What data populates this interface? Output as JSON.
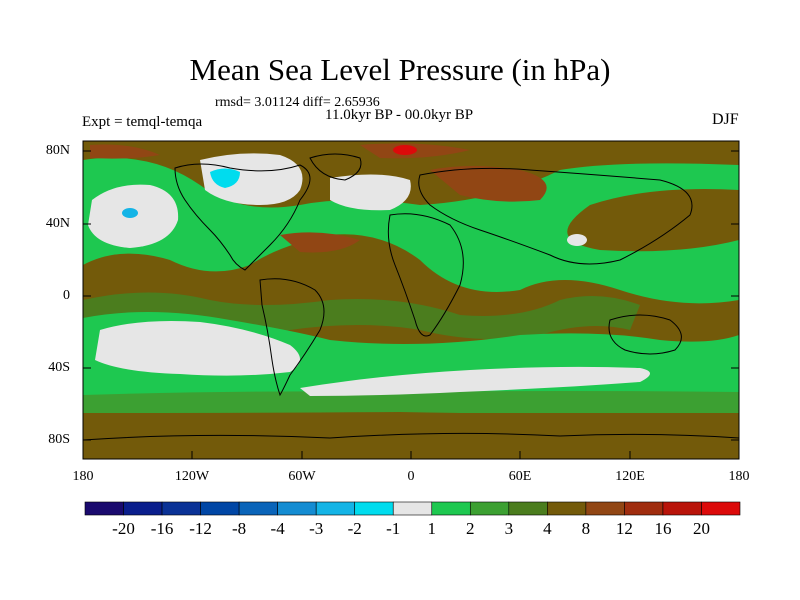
{
  "title": "Mean Sea Level Pressure (in hPa)",
  "stats": "rmsd= 3.01124 diff= 2.65936",
  "period": "11.0kyr BP - 00.0kyr BP",
  "experiment": "Expt = temql-temqa",
  "season": "DJF",
  "y_ticks": [
    "80N",
    "40N",
    "0",
    "40S",
    "80S"
  ],
  "x_ticks": [
    "180",
    "120W",
    "60W",
    "0",
    "60E",
    "120E",
    "180"
  ],
  "colorbar": {
    "labels": [
      "-20",
      "-16",
      "-12",
      "-8",
      "-4",
      "-3",
      "-2",
      "-1",
      "1",
      "2",
      "3",
      "4",
      "8",
      "12",
      "16",
      "20"
    ],
    "colors": [
      "#1a0a6e",
      "#0a1e8c",
      "#0a3296",
      "#0046a5",
      "#0a64b9",
      "#148cd2",
      "#14b4e6",
      "#00dcee",
      "#e6e6e6",
      "#1ec850",
      "#3ca032",
      "#4b7d1e",
      "#735a0a",
      "#914614",
      "#a02d0f",
      "#b9140a",
      "#dc0a0a"
    ]
  },
  "colors": {
    "land_background": "#735a0a",
    "green_band": "#1ec850",
    "pale_band": "#e6e6e6",
    "cyan": "#00dcee",
    "red_high": "#b9140a"
  }
}
